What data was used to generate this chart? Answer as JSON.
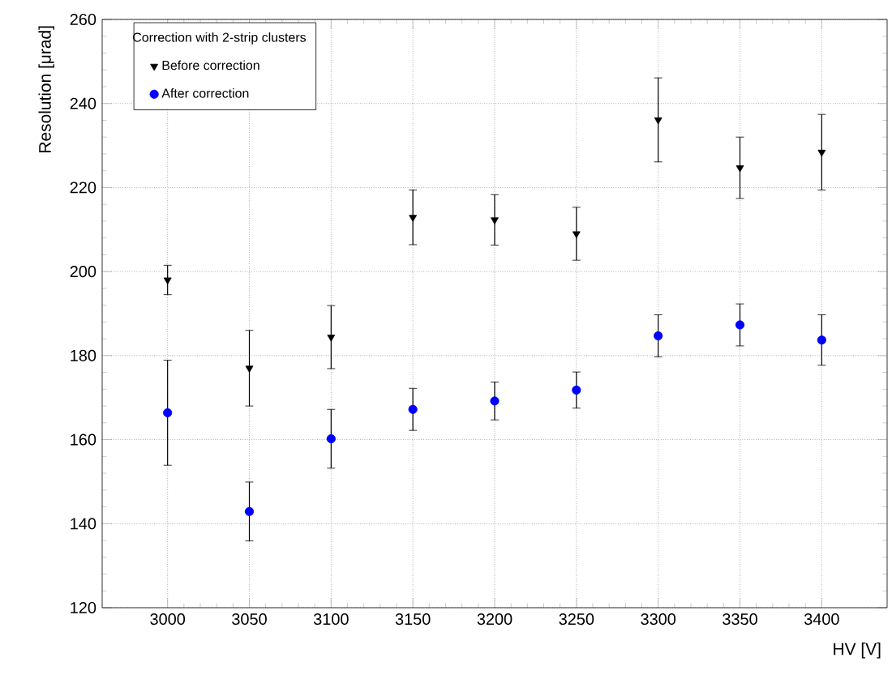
{
  "chart_data": {
    "type": "scatter",
    "xlabel": "HV [V]",
    "ylabel": "Resolution [μrad]",
    "legend_title": "Correction with 2-strip clusters",
    "x": [
      3000,
      3050,
      3100,
      3150,
      3200,
      3250,
      3300,
      3350,
      3400
    ],
    "series": [
      {
        "name": "Before correction",
        "color": "#000000",
        "marker": "triangle",
        "values": [
          198,
          177,
          184.4,
          212.9,
          212.3,
          209,
          236.1,
          224.7,
          228.4
        ],
        "errors": [
          3.5,
          9,
          7.5,
          6.5,
          6,
          6.3,
          10,
          7.3,
          9
        ]
      },
      {
        "name": "After correction",
        "color": "#0000ff",
        "marker": "circle",
        "values": [
          166.4,
          142.9,
          160.2,
          167.2,
          169.2,
          171.8,
          184.7,
          187.3,
          183.7
        ],
        "errors": [
          12.5,
          7,
          7,
          5,
          4.5,
          4.3,
          5,
          5,
          6
        ]
      }
    ],
    "xlim": [
      2960,
      3440
    ],
    "ylim": [
      120,
      260
    ],
    "xticks": [
      3000,
      3050,
      3100,
      3150,
      3200,
      3250,
      3300,
      3350,
      3400
    ],
    "yticks": [
      120,
      140,
      160,
      180,
      200,
      220,
      240,
      260
    ],
    "grid": true,
    "legend": "top left"
  }
}
